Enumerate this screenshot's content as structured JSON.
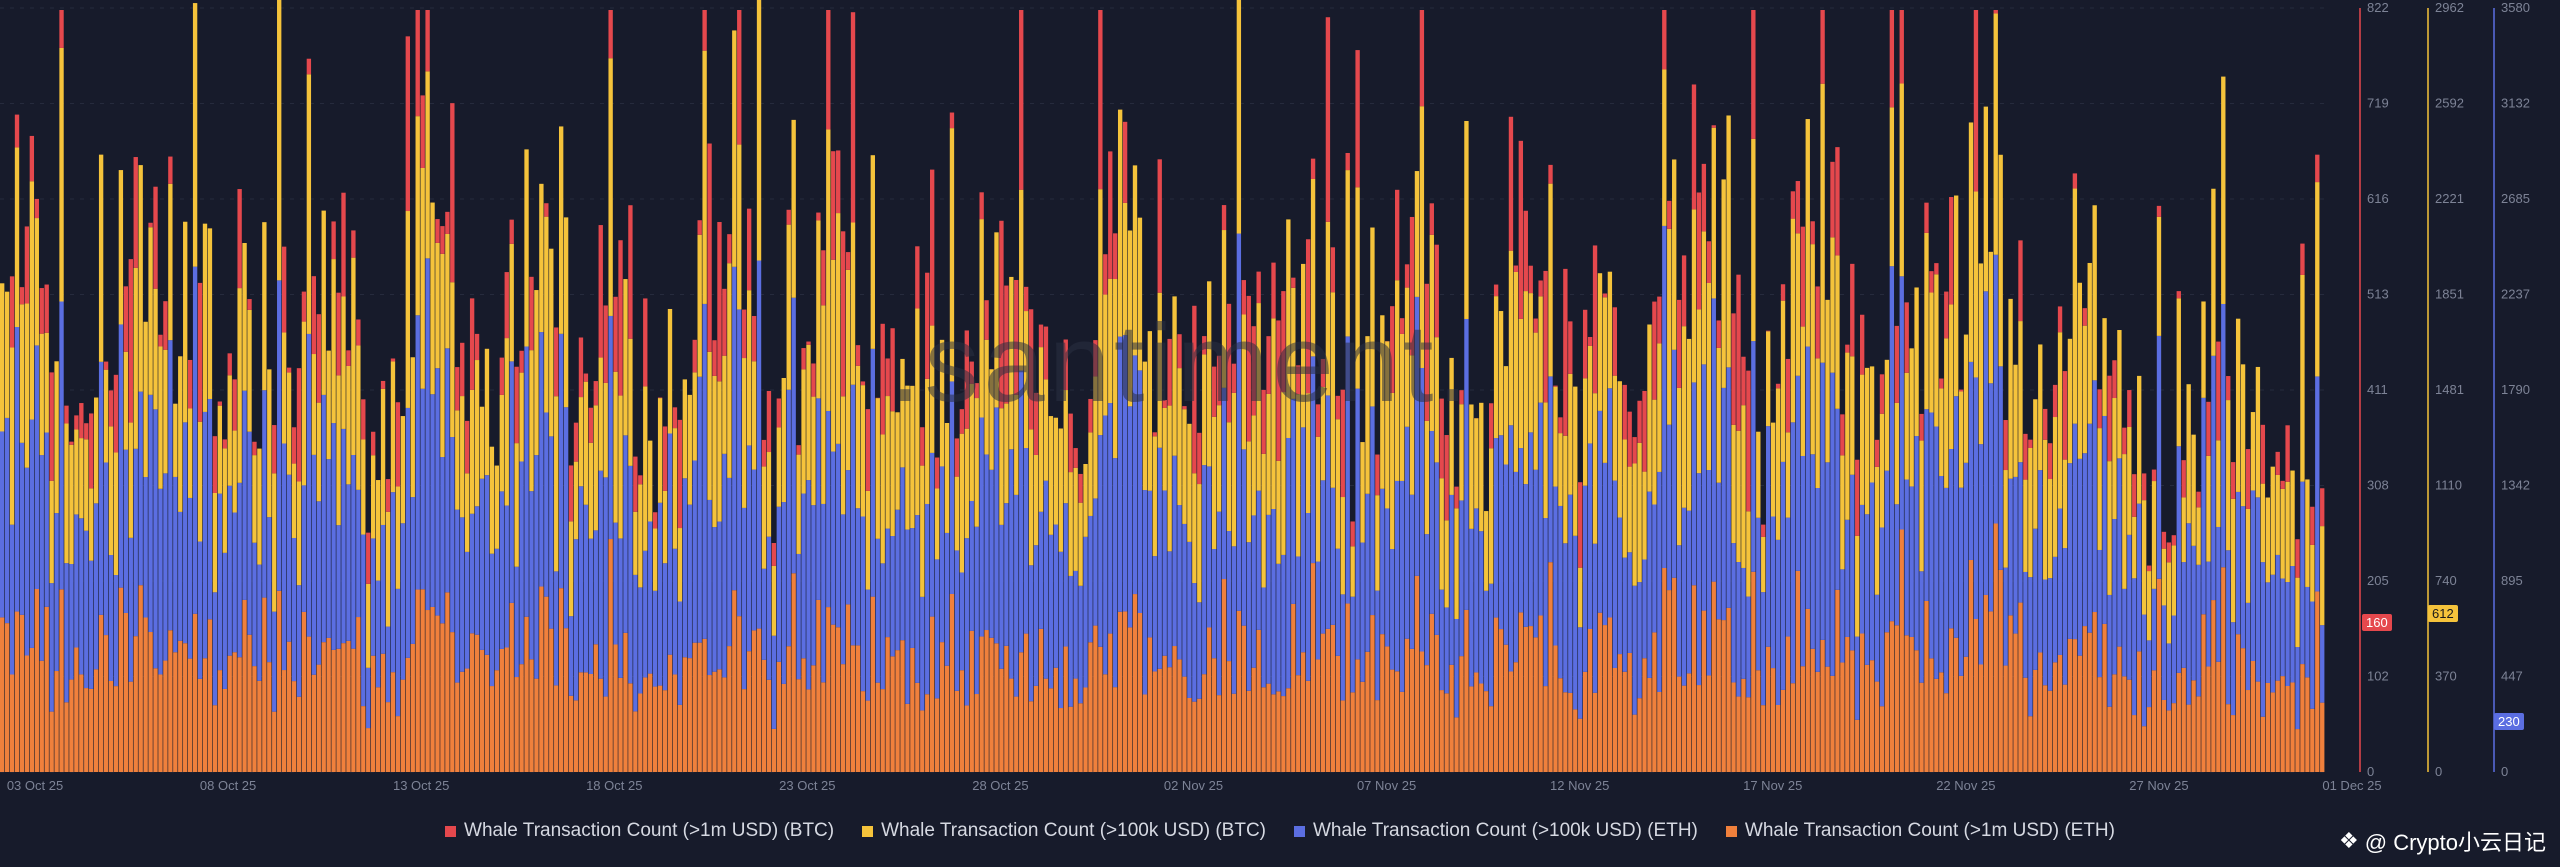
{
  "chart_data": {
    "type": "bar",
    "title": "Whale Transaction Count",
    "x_dates": [
      "03 Oct 25",
      "08 Oct 25",
      "13 Oct 25",
      "18 Oct 25",
      "23 Oct 25",
      "28 Oct 25",
      "02 Nov 25",
      "07 Nov 25",
      "12 Nov 25",
      "17 Nov 25",
      "22 Nov 25",
      "27 Nov 25",
      "01 Dec 25"
    ],
    "axes": [
      {
        "name": "btc-1m",
        "color": "#e5484d",
        "ticks": [
          "822",
          "719",
          "616",
          "513",
          "411",
          "308",
          "205",
          "102",
          "0"
        ],
        "ylim": [
          0,
          822
        ],
        "current": "160"
      },
      {
        "name": "btc-100k",
        "color": "#f5c33b",
        "ticks": [
          "2962",
          "2592",
          "2221",
          "1851",
          "1481",
          "1110",
          "740",
          "370",
          "0"
        ],
        "ylim": [
          0,
          2962
        ],
        "current": "612"
      },
      {
        "name": "eth-100k",
        "color": "#5b6ee1",
        "ticks": [
          "3580",
          "3132",
          "2685",
          "2237",
          "1790",
          "1342",
          "895",
          "447",
          "0"
        ],
        "ylim": [
          0,
          3580
        ],
        "current": "230"
      }
    ],
    "series": [
      {
        "name": "Whale Transaction Count (>1m USD) (BTC)",
        "color": "#e5484d"
      },
      {
        "name": "Whale Transaction Count (>100k USD) (BTC)",
        "color": "#f5c33b"
      },
      {
        "name": "Whale Transaction Count (>100k USD) (ETH)",
        "color": "#5b6ee1"
      },
      {
        "name": "Whale Transaction Count (>1m USD) (ETH)",
        "color": "#f0803c"
      }
    ]
  },
  "watermark": ".santiment.",
  "credit": "@ Crypto小云日记"
}
